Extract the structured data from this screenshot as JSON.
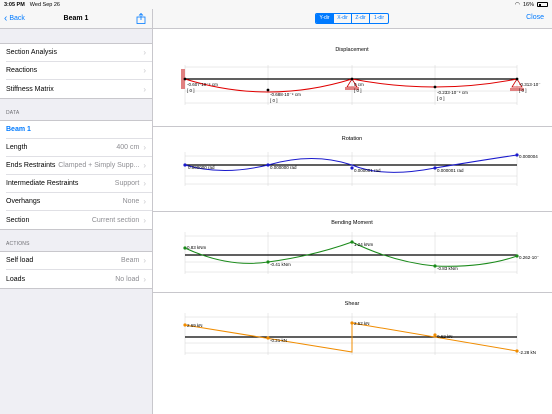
{
  "status": {
    "time": "3:05 PM",
    "date": "Wed Sep 26",
    "battery": "16%"
  },
  "nav": {
    "back": "Back",
    "title": "Beam 1"
  },
  "menu": [
    {
      "label": "Section Analysis"
    },
    {
      "label": "Reactions"
    },
    {
      "label": "Stiffness Matrix"
    }
  ],
  "data_header": "DATA",
  "data_rows": [
    {
      "label": "Beam 1",
      "value": ""
    },
    {
      "label": "Length",
      "value": "400 cm"
    },
    {
      "label": "Ends Restraints",
      "value": "Clamped + Simply Supp..."
    },
    {
      "label": "Intermediate Restraints",
      "value": "Support"
    },
    {
      "label": "Overhangs",
      "value": "None"
    },
    {
      "label": "Section",
      "value": "Current section"
    }
  ],
  "actions_header": "ACTIONS",
  "action_rows": [
    {
      "label": "Self load",
      "value": "Beam"
    },
    {
      "label": "Loads",
      "value": "No load"
    }
  ],
  "direction_tabs": [
    "Y-dir",
    "X-dir",
    "Z-dir",
    "1-dir"
  ],
  "active_tab": "Y-dir",
  "close_label": "Close",
  "colors": {
    "accent": "#007aff",
    "displacement": "#e00000",
    "rotation": "#1a1acc",
    "moment": "#1a8a1a",
    "shear": "#f08c00"
  },
  "diagrams": [
    {
      "title": "Displacement",
      "labels": [
        {
          "text": "-0.607·10⁻⁹ cm",
          "sub": "[ 0 ]"
        },
        {
          "text": "-0.688·10⁻⁹ cm",
          "sub": "[ 0 ]"
        },
        {
          "text": "0 cm",
          "sub": "[ 0 ]"
        },
        {
          "text": "-0.233·10⁻⁹ cm",
          "sub": "[ 0 ]"
        },
        {
          "text": "-0.313·10⁻",
          "sub": "[ 0 ]"
        }
      ]
    },
    {
      "title": "Rotation",
      "labels": [
        {
          "text": "0.000000 rad"
        },
        {
          "text": "0.000000 rad"
        },
        {
          "text": "0.000001 rad"
        },
        {
          "text": "0.000001 rad"
        },
        {
          "text": "0.000004"
        }
      ]
    },
    {
      "title": "Bending Moment",
      "labels": [
        {
          "text": "0.83 kNm"
        },
        {
          "text": "-0.41 kNm"
        },
        {
          "text": "1.24 kNm"
        },
        {
          "text": "-0.83 kNm"
        },
        {
          "text": "0.262·10⁻"
        }
      ]
    },
    {
      "title": "Shear",
      "labels": [
        {
          "text": "2.69 kN"
        },
        {
          "text": "-0.21 kN"
        },
        {
          "text": "2.52 kN"
        },
        {
          "text": "0.62 kN"
        },
        {
          "text": "-2.28 kN"
        }
      ]
    }
  ]
}
